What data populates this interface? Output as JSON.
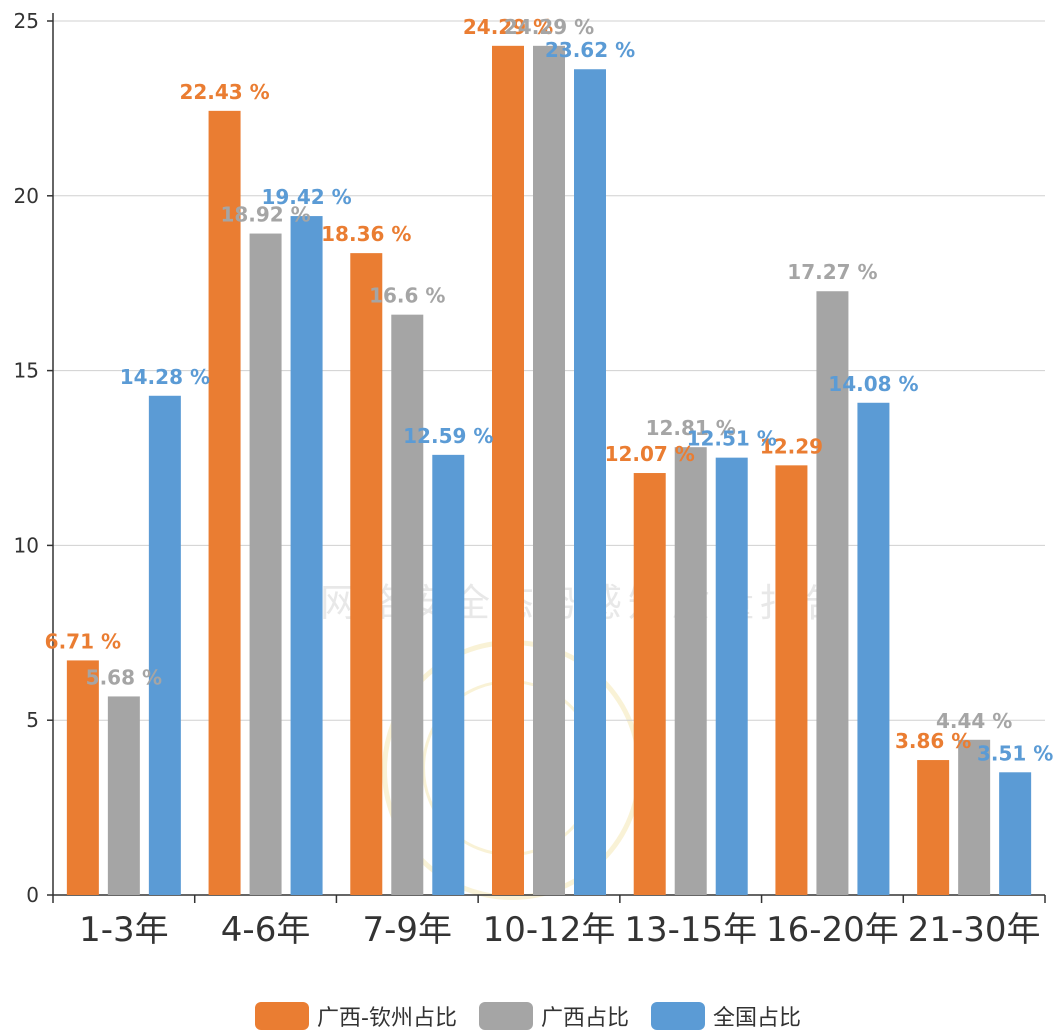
{
  "watermark_text": "网络安全态势感知质量报告",
  "colors": {
    "orange": "#ea7d32",
    "gray": "#a5a5a5",
    "blue": "#5b9bd5",
    "grid": "#d0d0d0",
    "axis": "#333333",
    "tick_label": "#333333"
  },
  "chart_data": {
    "type": "bar",
    "categories": [
      "1-3年",
      "4-6年",
      "7-9年",
      "10-12年",
      "13-15年",
      "16-20年",
      "21-30年"
    ],
    "series": [
      {
        "name": "广西-钦州占比",
        "values": [
          6.71,
          22.43,
          18.36,
          24.29,
          12.07,
          12.29,
          3.86
        ],
        "labels": [
          "6.71 %",
          "22.43 %",
          "18.36 %",
          "24.29 %",
          "12.07 %",
          "12.29",
          "3.86 %"
        ],
        "color": "#ea7d32"
      },
      {
        "name": "广西占比",
        "values": [
          5.68,
          18.92,
          16.6,
          24.29,
          12.81,
          17.27,
          4.44
        ],
        "labels": [
          "5.68 %",
          "18.92 %",
          "16.6 %",
          "24.29 %",
          "12.81 %",
          "17.27 %",
          "4.44 %"
        ],
        "color": "#a5a5a5"
      },
      {
        "name": "全国占比",
        "values": [
          14.28,
          19.42,
          12.59,
          23.62,
          12.51,
          14.08,
          3.51
        ],
        "labels": [
          "14.28 %",
          "19.42 %",
          "12.59 %",
          "23.62 %",
          "12.51 %",
          "14.08 %",
          "3.51 %"
        ],
        "color": "#5b9bd5"
      }
    ],
    "y_ticks": [
      "0",
      "5",
      "10",
      "15",
      "20",
      "25"
    ],
    "ylim": [
      0,
      25
    ],
    "grid": true,
    "legend_position": "bottom"
  }
}
